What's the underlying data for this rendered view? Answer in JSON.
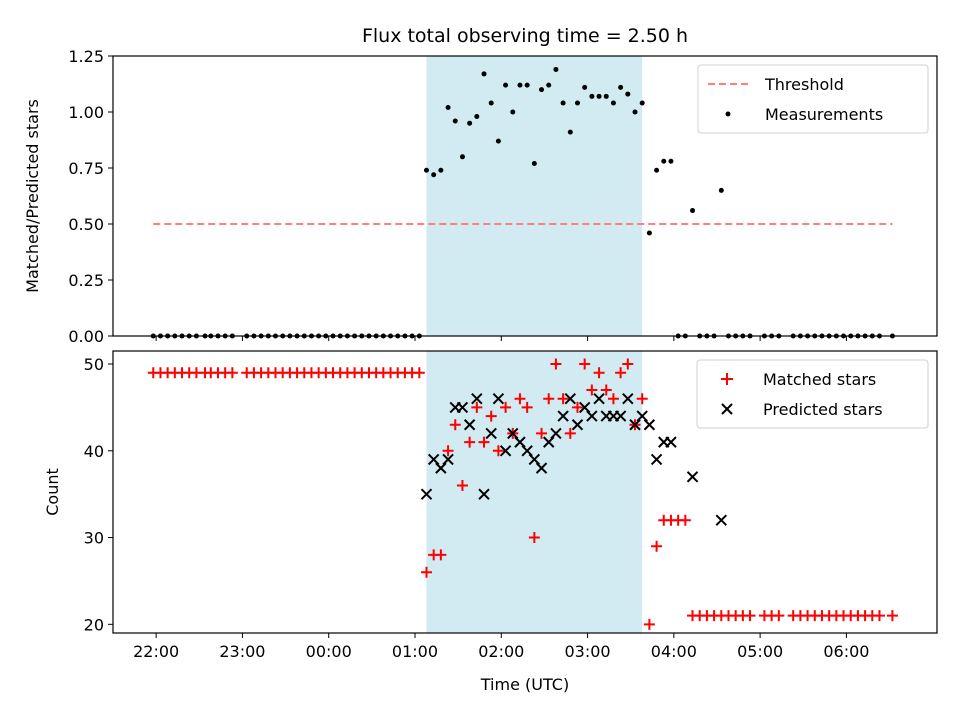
{
  "chart_data": [
    {
      "type": "scatter",
      "title": "Flux total observing time = 2.50 h",
      "xlabel": "",
      "ylabel": "Matched/Predicted stars",
      "ylim": [
        0,
        1.25
      ],
      "yticks": [
        "0.00",
        "0.25",
        "0.50",
        "0.75",
        "1.00",
        "1.25"
      ],
      "legend_position": "top-right",
      "shaded_interval": [
        "01:08",
        "03:38"
      ],
      "shade_color": "#add8e6",
      "threshold": {
        "name": "Threshold",
        "value": 0.5,
        "color": "#ff7f7f",
        "x_range": [
          "21:58",
          "06:32"
        ]
      },
      "series": [
        {
          "name": "Measurements",
          "color": "#000000",
          "x": [
            "21:58",
            "22:03",
            "22:08",
            "22:13",
            "22:18",
            "22:23",
            "22:28",
            "22:34",
            "22:38",
            "22:43",
            "22:48",
            "22:53",
            "23:03",
            "23:08",
            "23:13",
            "23:18",
            "23:23",
            "23:28",
            "23:33",
            "23:38",
            "23:43",
            "23:48",
            "23:53",
            "23:58",
            "00:03",
            "00:08",
            "00:13",
            "00:18",
            "00:23",
            "00:28",
            "00:33",
            "00:38",
            "00:43",
            "00:48",
            "00:53",
            "00:58",
            "01:03",
            "01:08",
            "01:13",
            "01:18",
            "01:23",
            "01:28",
            "01:33",
            "01:38",
            "01:43",
            "01:48",
            "01:53",
            "01:58",
            "02:03",
            "02:08",
            "02:13",
            "02:18",
            "02:23",
            "02:28",
            "02:33",
            "02:38",
            "02:43",
            "02:48",
            "02:53",
            "02:58",
            "03:03",
            "03:08",
            "03:13",
            "03:18",
            "03:23",
            "03:28",
            "03:33",
            "03:38",
            "03:43",
            "03:48",
            "03:53",
            "03:58",
            "04:03",
            "04:08",
            "04:13",
            "04:18",
            "04:23",
            "04:28",
            "04:33",
            "04:38",
            "04:43",
            "04:48",
            "04:53",
            "05:03",
            "05:08",
            "05:13",
            "05:23",
            "05:28",
            "05:33",
            "05:38",
            "05:43",
            "05:48",
            "05:53",
            "05:58",
            "06:03",
            "06:08",
            "06:13",
            "06:18",
            "06:23",
            "06:32"
          ],
          "y": [
            0,
            0,
            0,
            0,
            0,
            0,
            0,
            0,
            0,
            0,
            0,
            0,
            0,
            0,
            0,
            0,
            0,
            0,
            0,
            0,
            0,
            0,
            0,
            0,
            0,
            0,
            0,
            0,
            0,
            0,
            0,
            0,
            0,
            0,
            0,
            0,
            0,
            0.74,
            0.72,
            0.74,
            1.02,
            0.96,
            0.8,
            0.95,
            0.98,
            1.17,
            1.04,
            0.87,
            1.12,
            1.0,
            1.12,
            1.12,
            0.77,
            1.1,
            1.12,
            1.19,
            1.04,
            0.91,
            1.04,
            1.11,
            1.07,
            1.07,
            1.07,
            1.04,
            1.11,
            1.08,
            1.0,
            1.04,
            0.46,
            0.74,
            0.78,
            0.78,
            0,
            0,
            0.56,
            0,
            0,
            0,
            0.65,
            0,
            0,
            0,
            0,
            0,
            0,
            0,
            0,
            0,
            0,
            0,
            0,
            0,
            0,
            0,
            0,
            0,
            0,
            0,
            0,
            0
          ]
        }
      ]
    },
    {
      "type": "scatter",
      "title": "",
      "xlabel": "Time (UTC)",
      "ylabel": "Count",
      "ylim": [
        19,
        51.5
      ],
      "yticks": [
        "20",
        "30",
        "40",
        "50"
      ],
      "xticks": [
        "22:00",
        "23:00",
        "00:00",
        "01:00",
        "02:00",
        "03:00",
        "04:00",
        "05:00",
        "06:00"
      ],
      "legend_position": "top-right",
      "shaded_interval": [
        "01:08",
        "03:38"
      ],
      "shade_color": "#add8e6",
      "series": [
        {
          "name": "Matched stars",
          "marker": "plus",
          "color": "#ff0000",
          "x": [
            "21:58",
            "22:03",
            "22:08",
            "22:13",
            "22:18",
            "22:23",
            "22:28",
            "22:34",
            "22:38",
            "22:43",
            "22:48",
            "22:53",
            "23:03",
            "23:08",
            "23:13",
            "23:18",
            "23:23",
            "23:28",
            "23:33",
            "23:38",
            "23:43",
            "23:48",
            "23:53",
            "23:58",
            "00:03",
            "00:08",
            "00:13",
            "00:18",
            "00:23",
            "00:28",
            "00:33",
            "00:38",
            "00:43",
            "00:48",
            "00:53",
            "00:58",
            "01:03",
            "01:08",
            "01:13",
            "01:18",
            "01:23",
            "01:28",
            "01:33",
            "01:38",
            "01:43",
            "01:48",
            "01:53",
            "01:58",
            "02:03",
            "02:08",
            "02:13",
            "02:18",
            "02:23",
            "02:28",
            "02:33",
            "02:38",
            "02:43",
            "02:48",
            "02:53",
            "02:58",
            "03:03",
            "03:08",
            "03:13",
            "03:18",
            "03:23",
            "03:28",
            "03:33",
            "03:38",
            "03:43",
            "03:48",
            "03:53",
            "03:58",
            "04:03",
            "04:08",
            "04:13",
            "04:18",
            "04:23",
            "04:28",
            "04:33",
            "04:38",
            "04:43",
            "04:48",
            "04:53",
            "05:03",
            "05:08",
            "05:13",
            "05:23",
            "05:28",
            "05:33",
            "05:38",
            "05:43",
            "05:48",
            "05:53",
            "05:58",
            "06:03",
            "06:08",
            "06:13",
            "06:18",
            "06:23",
            "06:32"
          ],
          "y": [
            49,
            49,
            49,
            49,
            49,
            49,
            49,
            49,
            49,
            49,
            49,
            49,
            49,
            49,
            49,
            49,
            49,
            49,
            49,
            49,
            49,
            49,
            49,
            49,
            49,
            49,
            49,
            49,
            49,
            49,
            49,
            49,
            49,
            49,
            49,
            49,
            49,
            26,
            28,
            28,
            40,
            43,
            36,
            41,
            45,
            41,
            44,
            40,
            45,
            42,
            46,
            45,
            30,
            42,
            46,
            50,
            46,
            42,
            45,
            50,
            47,
            49,
            47,
            46,
            49,
            50,
            43,
            46,
            20,
            29,
            32,
            32,
            32,
            32,
            21,
            21,
            21,
            21,
            21,
            21,
            21,
            21,
            21,
            21,
            21,
            21,
            21,
            21,
            21,
            21,
            21,
            21,
            21,
            21,
            21,
            21,
            21,
            21,
            21,
            21
          ]
        },
        {
          "name": "Predicted stars",
          "marker": "x",
          "color": "#000000",
          "x": [
            "01:08",
            "01:13",
            "01:18",
            "01:23",
            "01:28",
            "01:33",
            "01:38",
            "01:43",
            "01:48",
            "01:53",
            "01:58",
            "02:03",
            "02:08",
            "02:13",
            "02:18",
            "02:23",
            "02:28",
            "02:33",
            "02:38",
            "02:43",
            "02:48",
            "02:53",
            "02:58",
            "03:03",
            "03:08",
            "03:13",
            "03:18",
            "03:23",
            "03:28",
            "03:33",
            "03:38",
            "03:43",
            "03:48",
            "03:53",
            "03:58",
            "04:13",
            "04:33"
          ],
          "y": [
            35,
            39,
            38,
            39,
            45,
            45,
            43,
            46,
            35,
            42,
            46,
            40,
            42,
            41,
            40,
            39,
            38,
            41,
            42,
            44,
            46,
            43,
            45,
            44,
            46,
            44,
            44,
            44,
            46,
            43,
            44,
            43,
            39,
            41,
            41,
            37,
            32
          ]
        }
      ]
    }
  ]
}
